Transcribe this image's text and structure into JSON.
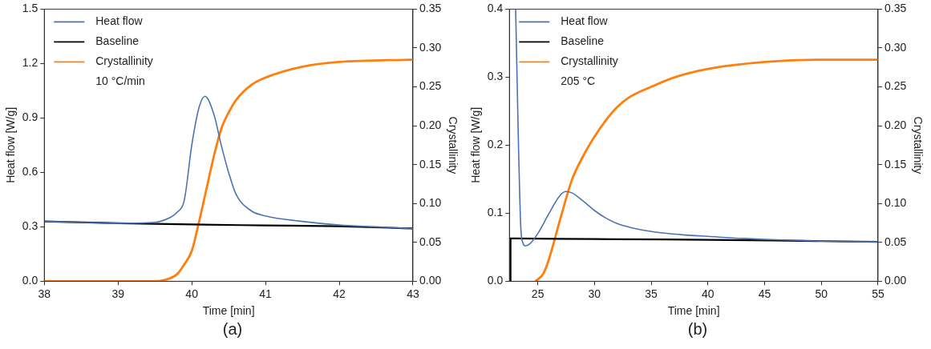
{
  "chart_data": [
    {
      "type": "line",
      "xlabel": "Time [min]",
      "ylabel": "Heat flow [W/g]",
      "y2label": "Crystallinity",
      "legend": "top left",
      "grid": false,
      "marker": "none",
      "line_style": "solid",
      "xlim": [
        38,
        43
      ],
      "xticks": [
        38,
        39,
        40,
        41,
        42,
        43
      ],
      "ylim": [
        0,
        1.5
      ],
      "yticks": [
        {
          "value": 0,
          "label": "0.0"
        },
        0.3,
        0.6,
        0.9,
        1.2,
        1.5
      ],
      "y2lim": [
        0,
        0.35
      ],
      "y2ticks": [
        {
          "value": 0,
          "label": "0.00"
        },
        0.05,
        {
          "value": 0.1,
          "label": "0.10"
        },
        0.15,
        {
          "value": 0.2,
          "label": "0.20"
        },
        0.25,
        {
          "value": 0.3,
          "label": "0.30"
        },
        0.35
      ],
      "annotations": [
        "10 °C/min",
        "(a)"
      ],
      "series": [
        {
          "name": "Heat flow",
          "color": "#4c72b0",
          "x": [
            38,
            38.5,
            39,
            39.5,
            39.7,
            39.8,
            39.9,
            40,
            40.1,
            40.18,
            40.3,
            40.4,
            40.5,
            40.6,
            40.8,
            41,
            41.5,
            42,
            42.5,
            43
          ],
          "values": [
            0.33,
            0.325,
            0.32,
            0.325,
            0.35,
            0.38,
            0.45,
            0.75,
            0.96,
            1.02,
            0.92,
            0.75,
            0.6,
            0.48,
            0.39,
            0.36,
            0.33,
            0.31,
            0.3,
            0.29
          ]
        },
        {
          "name": "Baseline",
          "color": "#000000",
          "x": [
            38,
            39,
            40,
            41,
            42,
            43
          ],
          "values": [
            0.33,
            0.32,
            0.313,
            0.308,
            0.303,
            0.291
          ]
        },
        {
          "name": "Crystallinity",
          "color": "#ff7f0e",
          "axis": "y2",
          "x": [
            38,
            39.5,
            39.6,
            39.8,
            39.9,
            40,
            40.1,
            40.2,
            40.3,
            40.4,
            40.5,
            40.6,
            40.8,
            41,
            41.5,
            42,
            43
          ],
          "values": [
            0,
            0,
            0.001,
            0.009,
            0.022,
            0.039,
            0.077,
            0.119,
            0.161,
            0.196,
            0.217,
            0.233,
            0.252,
            0.262,
            0.276,
            0.282,
            0.285
          ]
        }
      ]
    },
    {
      "type": "line",
      "xlabel": "Time [min]",
      "ylabel": "Heat flow [W/g]",
      "y2label": "Crystallinity",
      "legend": "top left",
      "grid": false,
      "marker": "none",
      "line_style": "solid",
      "xlim": [
        22.5,
        55
      ],
      "xticks": [
        25,
        30,
        35,
        40,
        45,
        50,
        55
      ],
      "ylim": [
        0,
        0.4
      ],
      "yticks": [
        {
          "value": 0,
          "label": "0.0"
        },
        0.1,
        0.2,
        0.3,
        0.4
      ],
      "y2lim": [
        0,
        0.35
      ],
      "y2ticks": [
        {
          "value": 0,
          "label": "0.00"
        },
        0.05,
        {
          "value": 0.1,
          "label": "0.10"
        },
        0.15,
        {
          "value": 0.2,
          "label": "0.20"
        },
        0.25,
        {
          "value": 0.3,
          "label": "0.30"
        },
        0.35
      ],
      "annotations": [
        "205 °C",
        "(b)"
      ],
      "series": [
        {
          "name": "Heat flow",
          "color": "#4c72b0",
          "x": [
            23.05,
            23.2,
            23.3,
            23.5,
            23.7,
            23.9,
            24.3,
            25,
            26,
            27,
            27.5,
            28,
            29,
            30,
            31,
            32,
            34,
            36,
            38,
            40,
            43,
            46,
            50,
            55
          ],
          "values": [
            0.4,
            0.28,
            0.2,
            0.08,
            0.056,
            0.052,
            0.055,
            0.07,
            0.1,
            0.127,
            0.132,
            0.13,
            0.118,
            0.104,
            0.093,
            0.085,
            0.076,
            0.071,
            0.068,
            0.066,
            0.063,
            0.061,
            0.059,
            0.058
          ]
        },
        {
          "name": "Baseline",
          "color": "#000000",
          "x": [
            22.6,
            22.6,
            30,
            40,
            50,
            55
          ],
          "values": [
            0,
            0.063,
            0.062,
            0.061,
            0.059,
            0.058
          ]
        },
        {
          "name": "Crystallinity",
          "color": "#ff7f0e",
          "axis": "y2",
          "x": [
            24.8,
            25.5,
            26,
            27,
            28,
            29,
            30,
            31,
            32,
            33,
            35,
            37,
            40,
            45,
            50,
            55
          ],
          "values": [
            0,
            0.01,
            0.029,
            0.081,
            0.13,
            0.161,
            0.186,
            0.207,
            0.224,
            0.236,
            0.25,
            0.262,
            0.273,
            0.282,
            0.285,
            0.285
          ]
        }
      ]
    }
  ]
}
